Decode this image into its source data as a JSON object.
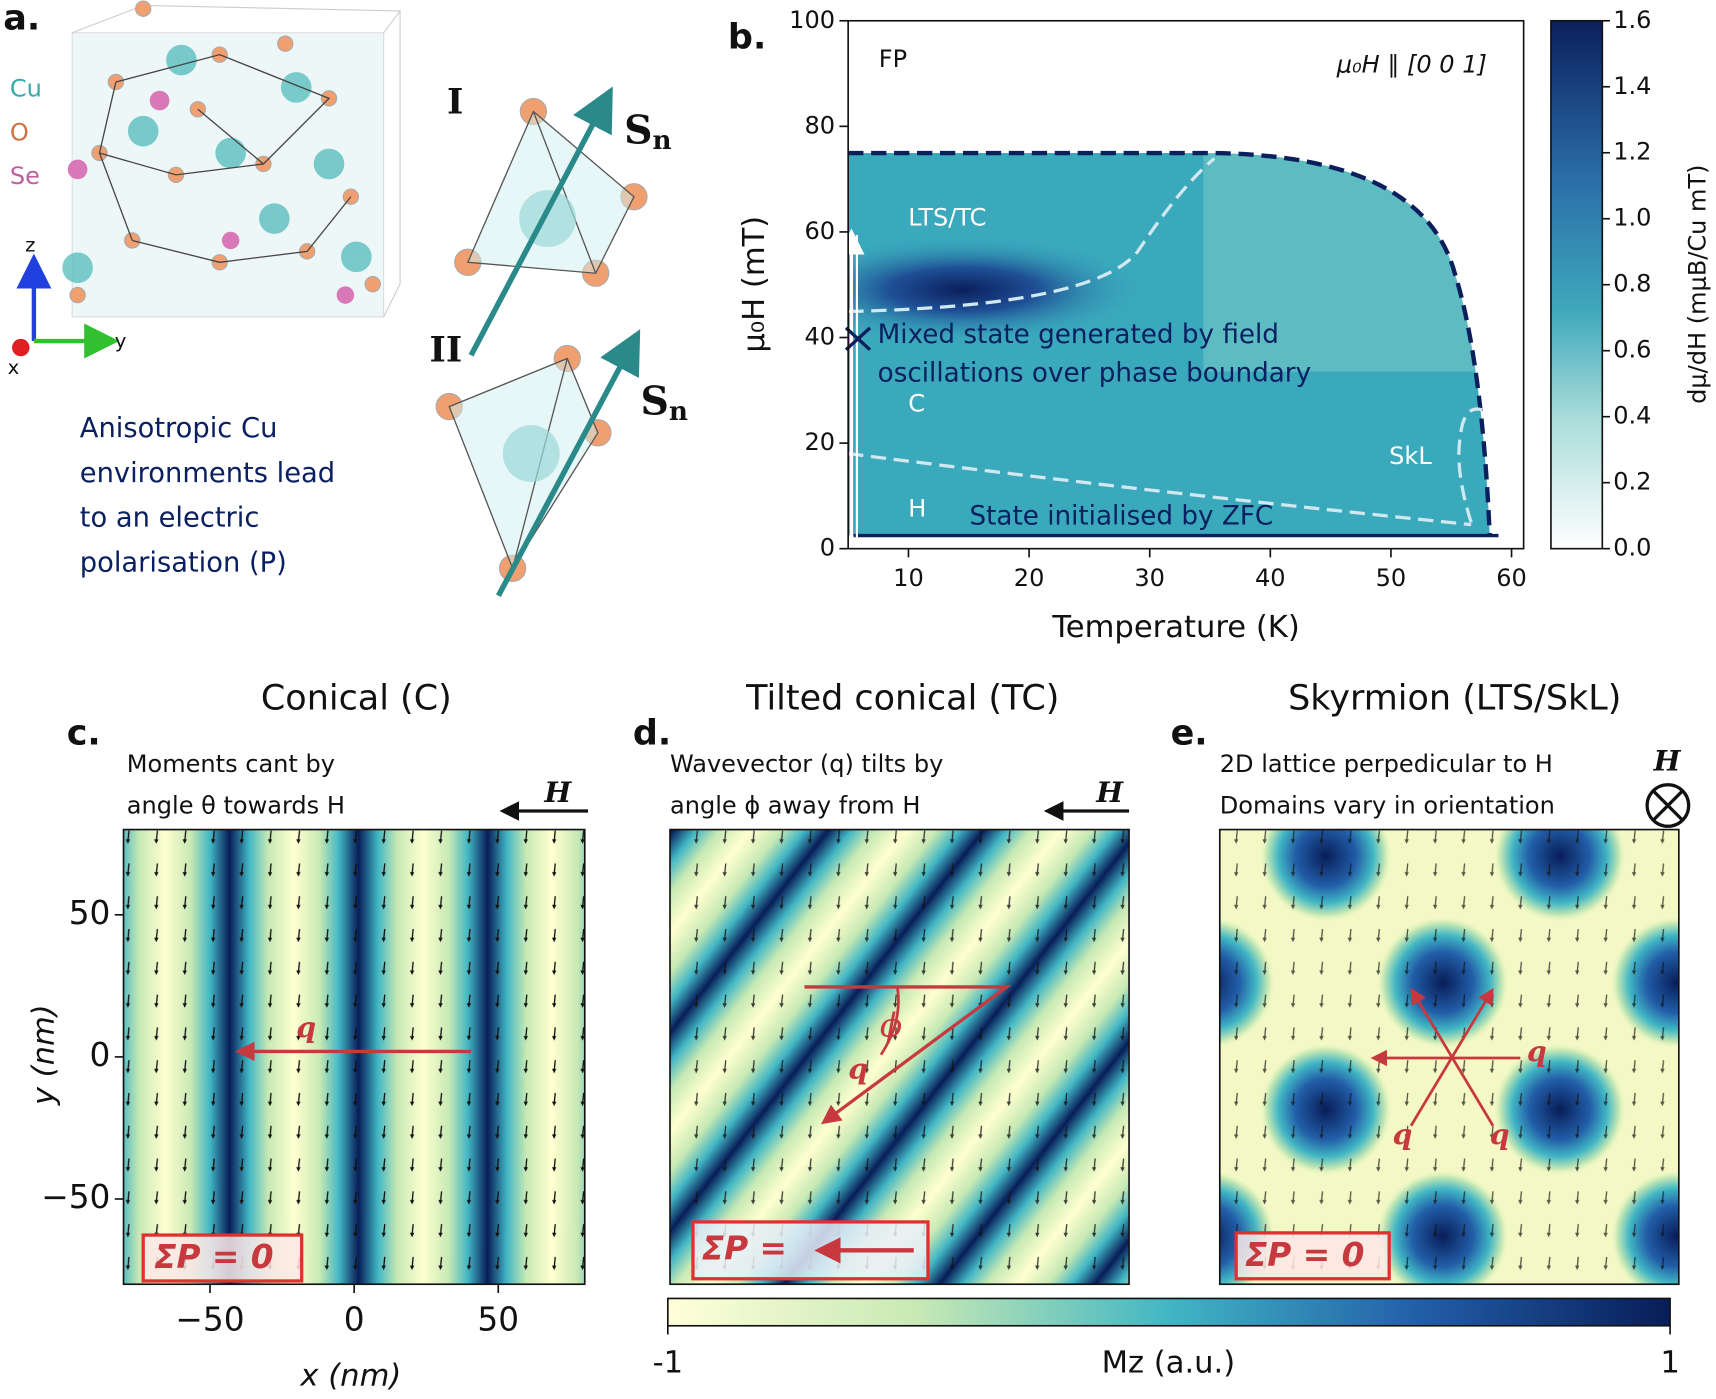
{
  "figure": {
    "panel_a": {
      "label": "a.",
      "elements": [
        "Cu",
        "O",
        "Se"
      ],
      "axes": [
        "z",
        "y",
        "x"
      ],
      "sites": [
        "I",
        "II"
      ],
      "vector": "S",
      "vector_sub": "n",
      "caption": [
        "Anisotropic Cu",
        "environments lead",
        "to an electric",
        "polarisation (P)"
      ]
    },
    "shared_colorbar": {
      "label": "Mz (a.u.)",
      "lim": [
        -1,
        1
      ],
      "ticks": [
        -1,
        1
      ]
    }
  },
  "chart_data": [
    {
      "type": "heatmap",
      "panel_label": "b.",
      "xlabel": "Temperature (K)",
      "ylabel": "μ₀H (mT)",
      "xlim": [
        5,
        61
      ],
      "xticks": [
        10,
        20,
        30,
        40,
        50,
        60
      ],
      "ylim": [
        0,
        100
      ],
      "yticks": [
        0,
        20,
        40,
        60,
        80,
        100
      ],
      "colorbar": {
        "label": "dμ/dH (mμB/Cu mT)",
        "lim": [
          0,
          1.6
        ],
        "ticks": [
          {
            "value": 0,
            "label": "0.0"
          },
          0.2,
          0.4,
          0.6,
          0.8,
          {
            "value": 1,
            "label": "1.0"
          },
          1.2,
          1.4,
          1.6
        ]
      },
      "annotations": [
        "FP",
        "μ₀H ∥ [0 0 1]",
        "LTS/TC",
        "Mixed state generated by field",
        "oscillations over phase boundary",
        "C",
        "SkL",
        "H",
        "State initialised by ZFC"
      ]
    },
    {
      "type": "heatmap",
      "panel_label": "c.",
      "title": "Conical (C)",
      "description": [
        "Moments cant by",
        "angle θ towards H"
      ],
      "xlabel": "x (nm)",
      "ylabel": "y (nm)",
      "xlim": [
        -80,
        80
      ],
      "ylim": [
        -80,
        80
      ],
      "xticks": [
        {
          "value": -50,
          "label": "−50"
        },
        0,
        50
      ],
      "yticks": [
        50,
        0,
        {
          "value": -50,
          "label": "−50"
        }
      ],
      "annotations": [
        "H",
        "q",
        "ΣP = 0"
      ]
    },
    {
      "type": "heatmap",
      "panel_label": "d.",
      "title": "Tilted conical (TC)",
      "description": [
        "Wavevector (q) tilts by",
        "angle ϕ away from H"
      ],
      "annotations": [
        "H",
        "ϕ",
        "q",
        "ΣP ="
      ]
    },
    {
      "type": "heatmap",
      "panel_label": "e.",
      "title": "Skyrmion (LTS/SkL)",
      "description": [
        "2D lattice perpedicular to H",
        "Domains vary in orientation"
      ],
      "annotations": [
        "H",
        "q",
        "q",
        "q",
        "ΣP = 0"
      ]
    }
  ]
}
